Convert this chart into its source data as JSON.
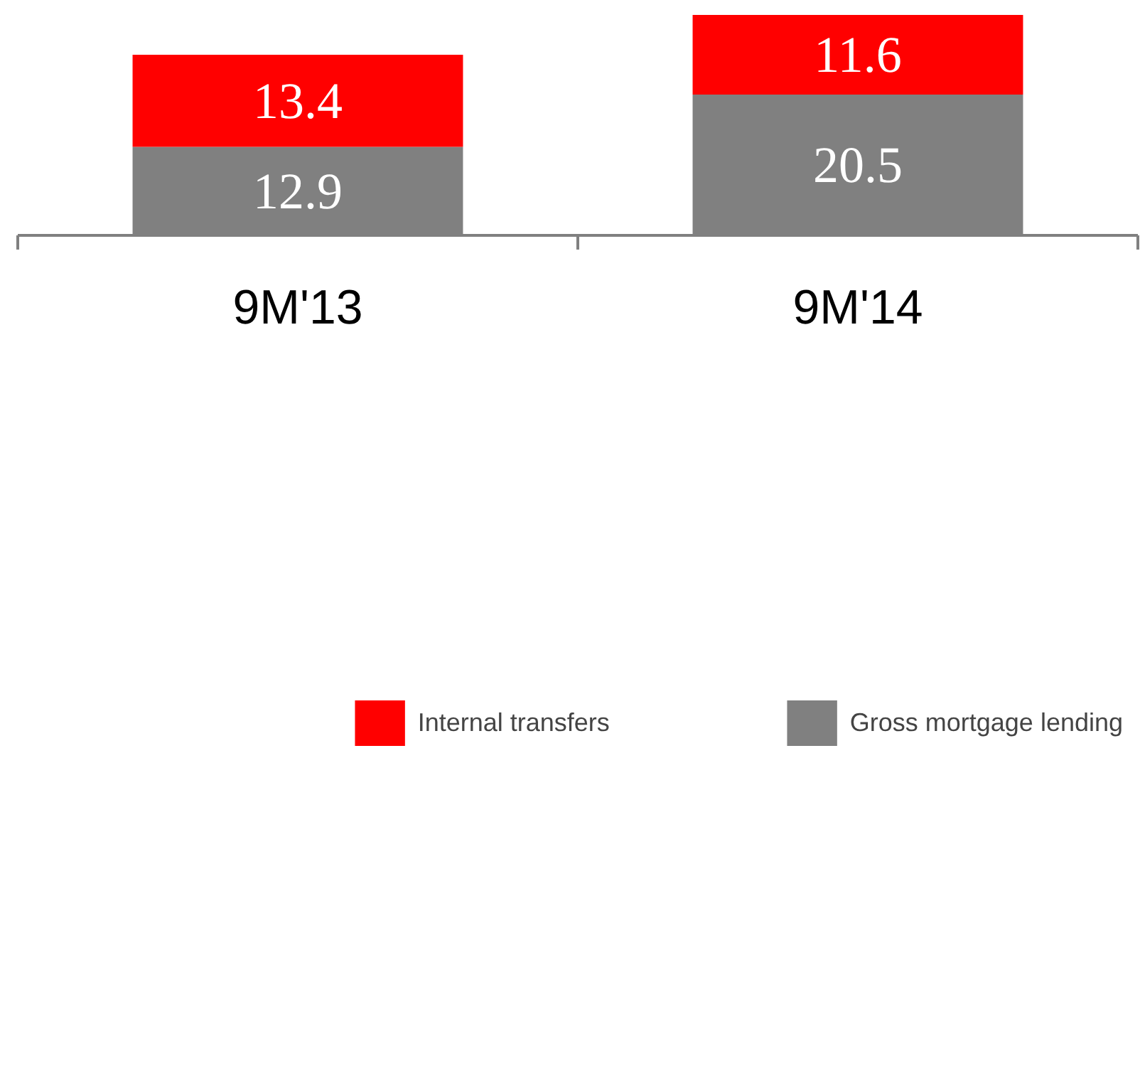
{
  "chart_data": {
    "type": "bar",
    "stacked": true,
    "categories": [
      "9M'13",
      "9M'14"
    ],
    "series": [
      {
        "name": "Gross mortgage lending",
        "color": "#808080",
        "values": [
          12.9,
          20.5
        ]
      },
      {
        "name": "Internal transfers",
        "color": "#ff0000",
        "values": [
          13.4,
          11.6
        ]
      }
    ],
    "data_labels": true,
    "legend": "bottom",
    "grid": false
  }
}
